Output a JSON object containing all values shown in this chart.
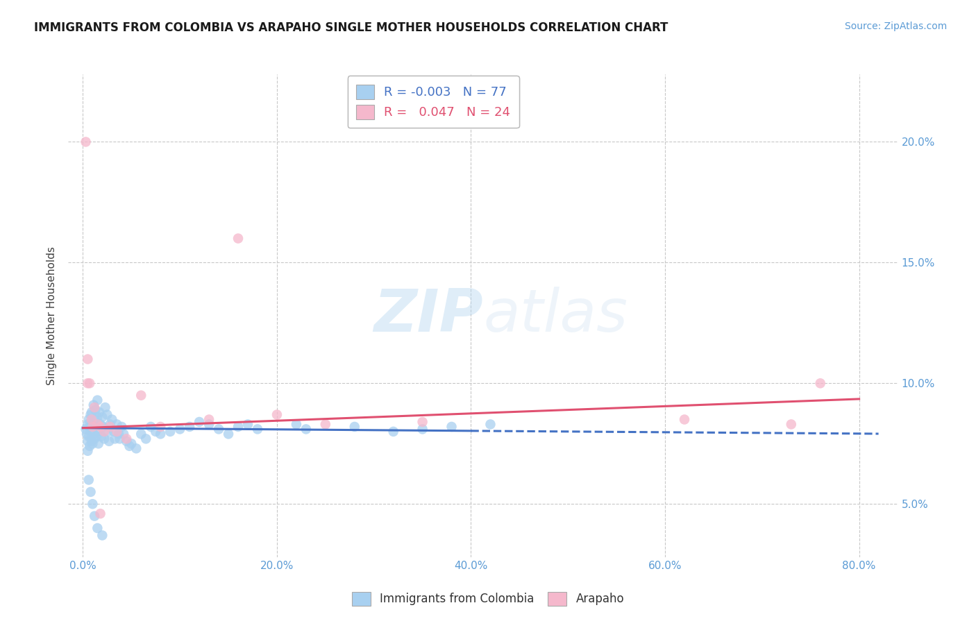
{
  "title": "IMMIGRANTS FROM COLOMBIA VS ARAPAHO SINGLE MOTHER HOUSEHOLDS CORRELATION CHART",
  "source_text": "Source: ZipAtlas.com",
  "ylabel": "Single Mother Households",
  "legend_entries": [
    {
      "label": "Immigrants from Colombia",
      "R": "-0.003",
      "N": "77",
      "color": "#a8d0f0"
    },
    {
      "label": "Arapaho",
      "R": "0.047",
      "N": "24",
      "color": "#f5b8cc"
    }
  ],
  "ytick_labels": [
    "5.0%",
    "10.0%",
    "15.0%",
    "20.0%"
  ],
  "ytick_values": [
    0.05,
    0.1,
    0.15,
    0.2
  ],
  "xtick_labels": [
    "0.0%",
    "20.0%",
    "40.0%",
    "60.0%",
    "80.0%"
  ],
  "xtick_values": [
    0.0,
    0.2,
    0.4,
    0.6,
    0.8
  ],
  "xlim": [
    -0.015,
    0.84
  ],
  "ylim": [
    0.028,
    0.228
  ],
  "watermark_zip": "ZIP",
  "watermark_atlas": "atlas",
  "blue_scatter_x": [
    0.003,
    0.004,
    0.005,
    0.005,
    0.005,
    0.006,
    0.006,
    0.007,
    0.007,
    0.008,
    0.008,
    0.009,
    0.009,
    0.01,
    0.01,
    0.011,
    0.011,
    0.012,
    0.012,
    0.013,
    0.013,
    0.014,
    0.015,
    0.015,
    0.016,
    0.016,
    0.017,
    0.018,
    0.019,
    0.02,
    0.021,
    0.022,
    0.023,
    0.025,
    0.026,
    0.027,
    0.028,
    0.03,
    0.032,
    0.033,
    0.035,
    0.037,
    0.038,
    0.04,
    0.042,
    0.045,
    0.048,
    0.05,
    0.055,
    0.06,
    0.065,
    0.07,
    0.075,
    0.08,
    0.09,
    0.1,
    0.11,
    0.12,
    0.13,
    0.14,
    0.15,
    0.16,
    0.17,
    0.18,
    0.22,
    0.23,
    0.28,
    0.32,
    0.35,
    0.38,
    0.42,
    0.006,
    0.008,
    0.01,
    0.012,
    0.015,
    0.02
  ],
  "blue_scatter_y": [
    0.081,
    0.079,
    0.083,
    0.076,
    0.072,
    0.085,
    0.078,
    0.082,
    0.074,
    0.087,
    0.08,
    0.076,
    0.088,
    0.083,
    0.075,
    0.091,
    0.079,
    0.085,
    0.077,
    0.089,
    0.082,
    0.078,
    0.093,
    0.086,
    0.08,
    0.075,
    0.088,
    0.083,
    0.078,
    0.086,
    0.082,
    0.077,
    0.09,
    0.087,
    0.08,
    0.076,
    0.083,
    0.085,
    0.08,
    0.077,
    0.083,
    0.079,
    0.077,
    0.082,
    0.079,
    0.076,
    0.074,
    0.075,
    0.073,
    0.079,
    0.077,
    0.082,
    0.08,
    0.079,
    0.08,
    0.081,
    0.082,
    0.084,
    0.083,
    0.081,
    0.079,
    0.082,
    0.083,
    0.081,
    0.083,
    0.081,
    0.082,
    0.08,
    0.081,
    0.082,
    0.083,
    0.06,
    0.055,
    0.05,
    0.045,
    0.04,
    0.037
  ],
  "pink_scatter_x": [
    0.003,
    0.005,
    0.007,
    0.009,
    0.012,
    0.015,
    0.018,
    0.022,
    0.028,
    0.035,
    0.045,
    0.06,
    0.08,
    0.13,
    0.16,
    0.2,
    0.25,
    0.35,
    0.62,
    0.73,
    0.005,
    0.01,
    0.018,
    0.76
  ],
  "pink_scatter_y": [
    0.2,
    0.11,
    0.1,
    0.085,
    0.09,
    0.083,
    0.082,
    0.08,
    0.082,
    0.08,
    0.077,
    0.095,
    0.082,
    0.085,
    0.16,
    0.087,
    0.083,
    0.084,
    0.085,
    0.083,
    0.1,
    0.082,
    0.046,
    0.1
  ],
  "blue_solid_line_x": [
    0.0,
    0.4
  ],
  "blue_solid_line_y": [
    0.0815,
    0.0803
  ],
  "blue_dash_line_x": [
    0.4,
    0.82
  ],
  "blue_dash_line_y": [
    0.0803,
    0.0791
  ],
  "pink_line_x": [
    0.0,
    0.8
  ],
  "pink_line_y": [
    0.0815,
    0.0935
  ],
  "blue_color": "#a8d0f0",
  "pink_color": "#f5b8cc",
  "blue_line_color": "#4472c4",
  "pink_line_color": "#e05070",
  "grid_color": "#c8c8c8",
  "background_color": "#ffffff",
  "tick_color": "#5b9bd5"
}
